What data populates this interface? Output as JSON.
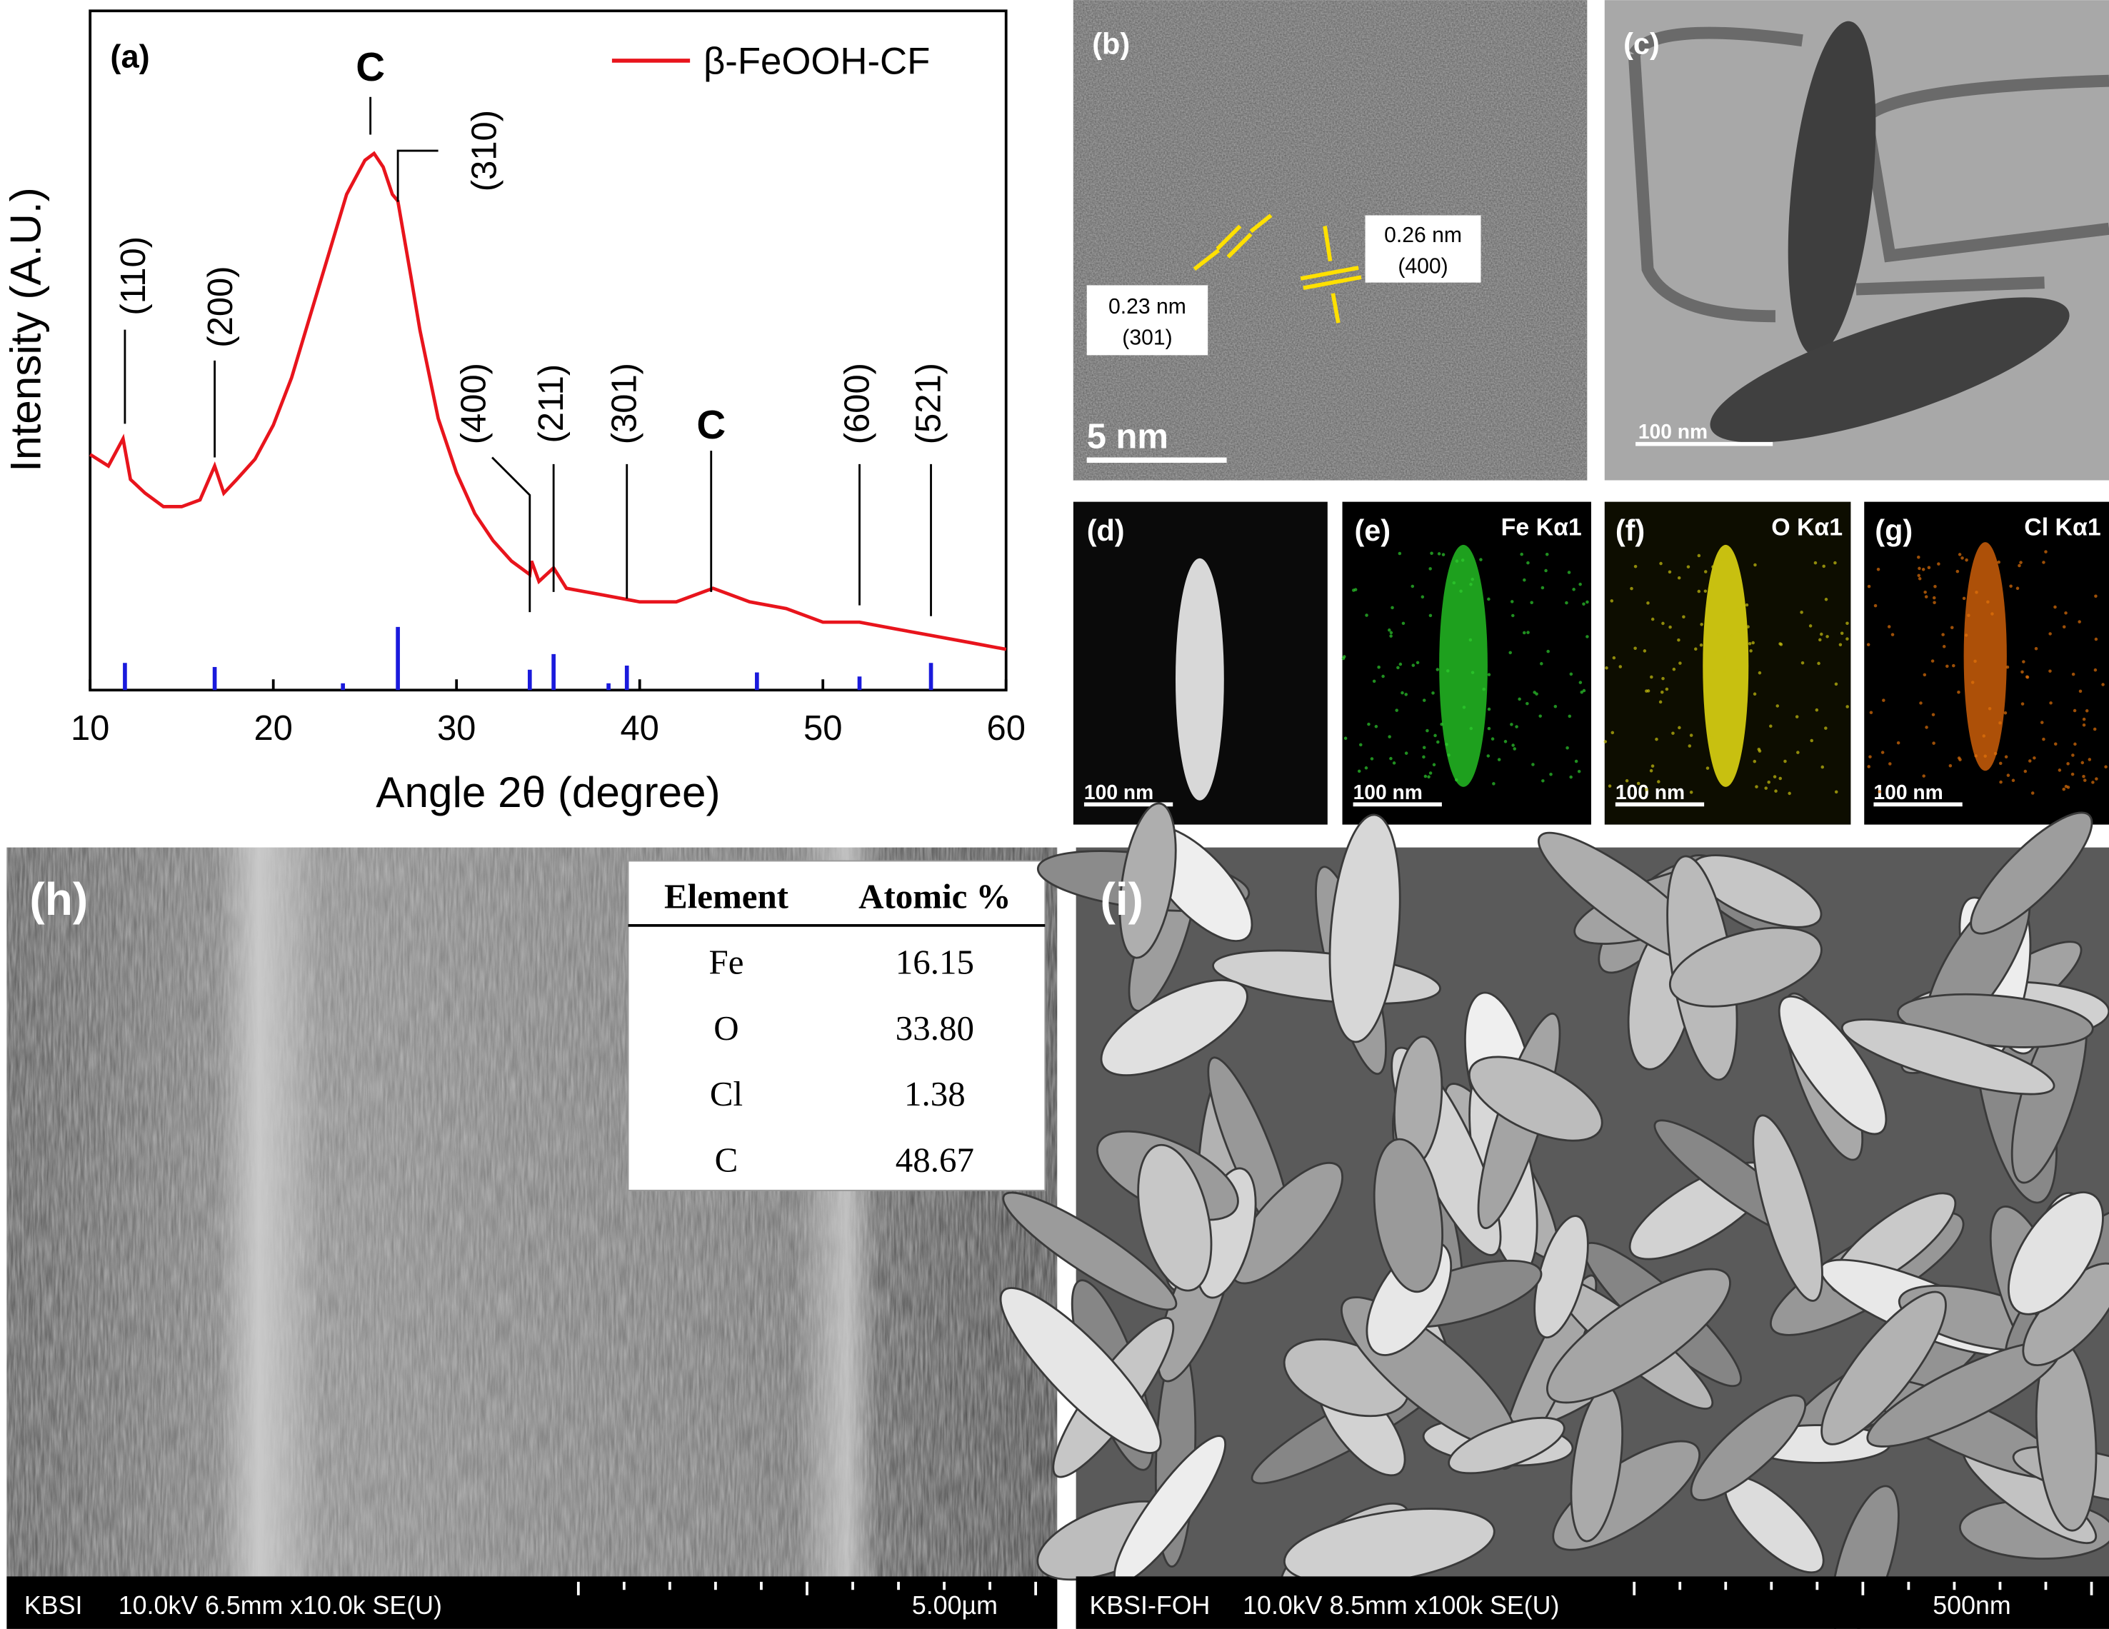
{
  "chart_data": {
    "type": "line",
    "panel_label": "(a)",
    "xlabel": "Angle 2θ (degree)",
    "ylabel": "Intensity (A.U.)",
    "x": [
      10,
      11,
      11.8,
      12.2,
      13,
      14,
      15,
      16,
      16.8,
      17.3,
      18,
      19,
      20,
      21,
      22,
      23,
      24,
      25,
      25.5,
      26,
      26.5,
      26.8,
      27.5,
      28,
      29,
      30,
      31,
      32,
      33,
      34,
      34.1,
      34.5,
      35.3,
      36,
      38,
      40,
      42,
      44,
      46,
      48,
      50,
      52,
      54,
      56,
      58,
      60
    ],
    "series": [
      {
        "name": "β-FeOOH-CF",
        "color": "#e8141c",
        "values": [
          34.7,
          33,
          37,
          31,
          29,
          27,
          27,
          28,
          33,
          29,
          31,
          34,
          39,
          46,
          55,
          64,
          73,
          78,
          79,
          77,
          73,
          72,
          61,
          53,
          40,
          32,
          26,
          22,
          19,
          17,
          19,
          16,
          18,
          15,
          14,
          13,
          13,
          15,
          13,
          12,
          10,
          10,
          9,
          8,
          7,
          6
        ]
      }
    ],
    "reference_lines": {
      "color": "#1a1adc",
      "x": [
        11.9,
        16.8,
        23.8,
        26.8,
        34.0,
        35.3,
        38.3,
        39.3,
        46.4,
        52.0,
        55.9
      ],
      "values": [
        4,
        3.4,
        1,
        9.3,
        3,
        5.3,
        1,
        3.6,
        2.6,
        2,
        4
      ]
    },
    "annotations": [
      {
        "text": "(110)",
        "x": 11.9
      },
      {
        "text": "(200)",
        "x": 16.8
      },
      {
        "text": "C",
        "x": 25.3
      },
      {
        "text": "(310)",
        "x": 26.8
      },
      {
        "text": "(400)",
        "x": 34.0
      },
      {
        "text": "(211)",
        "x": 35.3
      },
      {
        "text": "(301)",
        "x": 39.3
      },
      {
        "text": "C",
        "x": 43.9
      },
      {
        "text": "(600)",
        "x": 52.0
      },
      {
        "text": "(521)",
        "x": 55.9
      }
    ],
    "xlim": [
      10,
      60
    ],
    "xticks": [
      10,
      20,
      30,
      40,
      50,
      60
    ],
    "ylim": [
      0,
      100
    ],
    "legend": "upper right"
  },
  "panels": {
    "b": {
      "label": "(b)",
      "scale_bar": "5 nm",
      "spacings": [
        {
          "distance": "0.23 nm",
          "plane": "(301)"
        },
        {
          "distance": "0.26 nm",
          "plane": "(400)"
        }
      ]
    },
    "c": {
      "label": "(c)",
      "scale_bar": "100 nm"
    },
    "d": {
      "label": "(d)",
      "scale_bar": "100 nm"
    },
    "e": {
      "label": "(e)",
      "element": "Fe Kα1",
      "scale_bar": "100 nm"
    },
    "f": {
      "label": "(f)",
      "element": "O Kα1",
      "scale_bar": "100 nm"
    },
    "g": {
      "label": "(g)",
      "element": "Cl Kα1",
      "scale_bar": "100 nm"
    },
    "h": {
      "label": "(h)",
      "table": {
        "header": [
          "Element",
          "Atomic %"
        ],
        "rows": [
          [
            "Fe",
            "16.15"
          ],
          [
            "O",
            "33.80"
          ],
          [
            "Cl",
            "1.38"
          ],
          [
            "C",
            "48.67"
          ]
        ]
      },
      "info_bar": {
        "lab": "KBSI",
        "conditions": "10.0kV 6.5mm x10.0k SE(U)",
        "scale": "5.00µm"
      }
    },
    "i": {
      "label": "(i)",
      "info_bar": {
        "lab": "KBSI-FOH",
        "conditions": "10.0kV 8.5mm x100k SE(U)",
        "scale": "500nm"
      }
    }
  }
}
